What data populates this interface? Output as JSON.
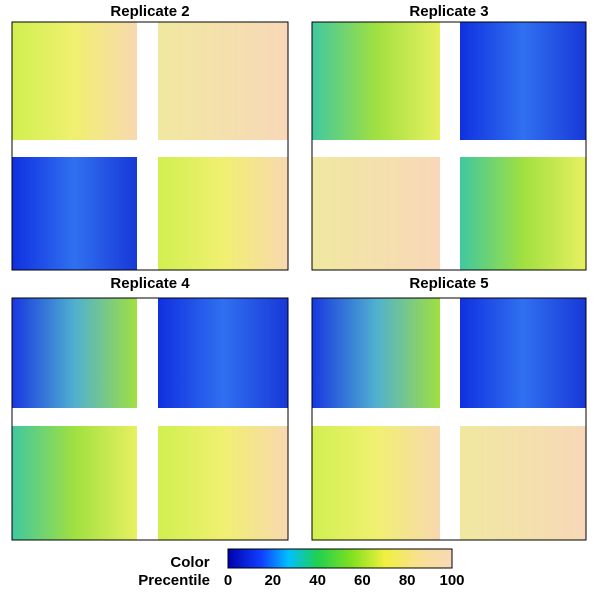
{
  "panels": [
    {
      "title": "Replicate 2"
    },
    {
      "title": "Replicate 3"
    },
    {
      "title": "Replicate 4"
    },
    {
      "title": "Replicate 5"
    }
  ],
  "colorbar": {
    "label": [
      "Color",
      "Precentile"
    ],
    "range": [
      0,
      100
    ],
    "ticks": [
      0,
      20,
      40,
      60,
      80,
      100
    ]
  }
}
